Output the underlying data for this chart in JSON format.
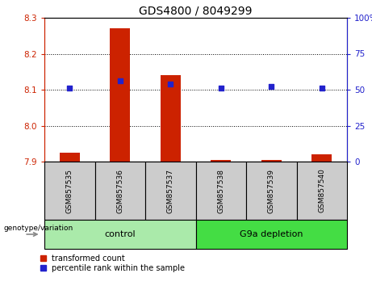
{
  "title": "GDS4800 / 8049299",
  "samples": [
    "GSM857535",
    "GSM857536",
    "GSM857537",
    "GSM857538",
    "GSM857539",
    "GSM857540"
  ],
  "red_values": [
    7.925,
    8.27,
    8.14,
    7.905,
    7.905,
    7.92
  ],
  "blue_values": [
    8.105,
    8.125,
    8.115,
    8.105,
    8.11,
    8.105
  ],
  "baseline": 7.9,
  "ylim_left": [
    7.9,
    8.3
  ],
  "ylim_right": [
    0,
    100
  ],
  "yticks_left": [
    7.9,
    8.0,
    8.1,
    8.2,
    8.3
  ],
  "yticks_right": [
    0,
    25,
    50,
    75,
    100
  ],
  "red_color": "#cc2200",
  "blue_color": "#2222cc",
  "bar_width": 0.4,
  "groups": [
    {
      "label": "control",
      "indices": [
        0,
        1,
        2
      ],
      "color": "#aaeaaa"
    },
    {
      "label": "G9a depletion",
      "indices": [
        3,
        4,
        5
      ],
      "color": "#44dd44"
    }
  ],
  "sample_box_color": "#cccccc",
  "legend_items": [
    {
      "label": "transformed count",
      "color": "#cc2200"
    },
    {
      "label": "percentile rank within the sample",
      "color": "#2222cc"
    }
  ],
  "genotype_label": "genotype/variation",
  "title_fontsize": 10,
  "tick_fontsize": 7.5,
  "sample_fontsize": 6.5,
  "group_fontsize": 8,
  "legend_fontsize": 7
}
